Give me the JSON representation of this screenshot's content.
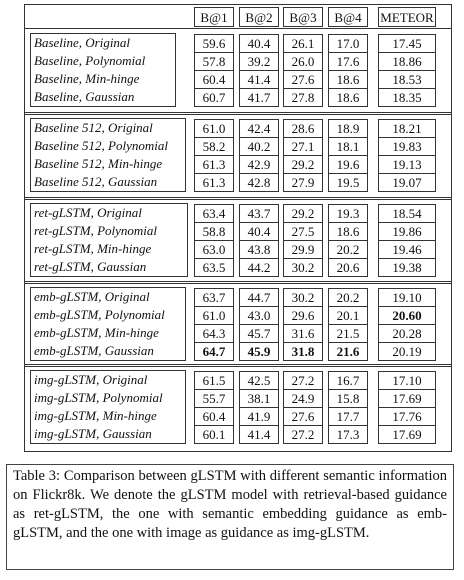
{
  "table": {
    "headers": [
      "B@1",
      "B@2",
      "B@3",
      "B@4",
      "METEOR"
    ],
    "groups": [
      {
        "rows": [
          {
            "label": "Baseline, Original",
            "values": [
              "59.6",
              "40.4",
              "26.1",
              "17.0",
              "17.45"
            ]
          },
          {
            "label": "Baseline, Polynomial",
            "values": [
              "57.8",
              "39.2",
              "26.0",
              "17.6",
              "18.86"
            ]
          },
          {
            "label": "Baseline, Min-hinge",
            "values": [
              "60.4",
              "41.4",
              "27.6",
              "18.6",
              "18.53"
            ]
          },
          {
            "label": "Baseline, Gaussian",
            "values": [
              "60.7",
              "41.7",
              "27.8",
              "18.6",
              "18.35"
            ]
          }
        ]
      },
      {
        "rows": [
          {
            "label": "Baseline 512, Original",
            "values": [
              "61.0",
              "42.4",
              "28.6",
              "18.9",
              "18.21"
            ]
          },
          {
            "label": "Baseline 512, Polynomial",
            "values": [
              "58.2",
              "40.2",
              "27.1",
              "18.1",
              "19.83"
            ]
          },
          {
            "label": "Baseline 512, Min-hinge",
            "values": [
              "61.3",
              "42.9",
              "29.2",
              "19.6",
              "19.13"
            ]
          },
          {
            "label": "Baseline 512, Gaussian",
            "values": [
              "61.3",
              "42.8",
              "27.9",
              "19.5",
              "19.07"
            ]
          }
        ]
      },
      {
        "rows": [
          {
            "label": "ret-gLSTM, Original",
            "values": [
              "63.4",
              "43.7",
              "29.2",
              "19.3",
              "18.54"
            ]
          },
          {
            "label": "ret-gLSTM, Polynomial",
            "values": [
              "58.8",
              "40.4",
              "27.5",
              "18.6",
              "19.86"
            ]
          },
          {
            "label": "ret-gLSTM, Min-hinge",
            "values": [
              "63.0",
              "43.8",
              "29.9",
              "20.2",
              "19.46"
            ]
          },
          {
            "label": "ret-gLSTM, Gaussian",
            "values": [
              "63.5",
              "44.2",
              "30.2",
              "20.6",
              "19.38"
            ]
          }
        ]
      },
      {
        "rows": [
          {
            "label": "emb-gLSTM, Original",
            "values": [
              "63.7",
              "44.7",
              "30.2",
              "20.2",
              "19.10"
            ]
          },
          {
            "label": "emb-gLSTM, Polynomial",
            "values": [
              "61.0",
              "43.0",
              "29.6",
              "20.1",
              "20.60"
            ]
          },
          {
            "label": "emb-gLSTM, Min-hinge",
            "values": [
              "64.3",
              "45.7",
              "31.6",
              "21.5",
              "20.28"
            ]
          },
          {
            "label": "emb-gLSTM, Gaussian",
            "values": [
              "64.7",
              "45.9",
              "31.8",
              "21.6",
              "20.19"
            ]
          }
        ]
      },
      {
        "rows": [
          {
            "label": "img-gLSTM, Original",
            "values": [
              "61.5",
              "42.5",
              "27.2",
              "16.7",
              "17.10"
            ]
          },
          {
            "label": "img-gLSTM, Polynomial",
            "values": [
              "55.7",
              "38.1",
              "24.9",
              "15.8",
              "17.69"
            ]
          },
          {
            "label": "img-gLSTM, Min-hinge",
            "values": [
              "60.4",
              "41.9",
              "27.6",
              "17.7",
              "17.76"
            ]
          },
          {
            "label": "img-gLSTM, Gaussian",
            "values": [
              "60.1",
              "41.4",
              "27.2",
              "17.3",
              "17.69"
            ]
          }
        ]
      }
    ]
  },
  "caption": "Table 3: Comparison between gLSTM with different semantic information on Flickr8k. We denote the gLSTM model with retrieval-based guidance as ret-gLSTM, the one with semantic embedding guidance as emb-gLSTM, and the one with image as guidance as img-gLSTM."
}
